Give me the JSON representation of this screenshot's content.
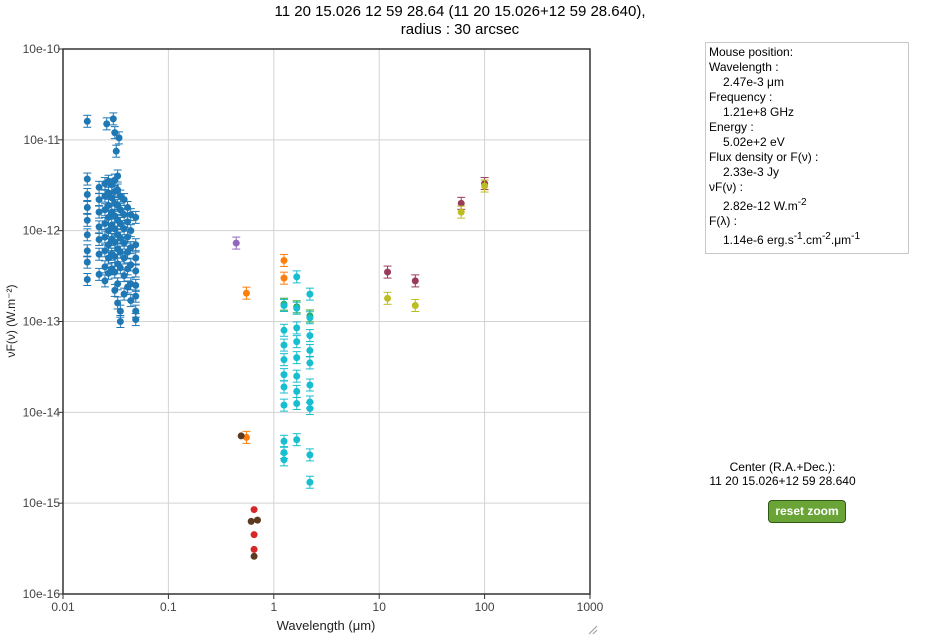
{
  "title": {
    "line1": "11 20 15.026 12 59 28.64 (11 20 15.026+12 59 28.640),",
    "line2": "radius : 30 arcsec"
  },
  "info": {
    "mouse_position_label": "Mouse position:",
    "wavelength_label": "Wavelength :",
    "wavelength_value": "2.47e-3 μm",
    "frequency_label": "Frequency :",
    "frequency_value": "1.21e+8 GHz",
    "energy_label": "Energy :",
    "energy_value": "5.02e+2 eV",
    "flux_label": "Flux density or F(ν) :",
    "flux_value": "2.33e-3 Jy",
    "vf_label": "νF(ν) :",
    "vf_value": "2.82e-12 W.m",
    "vf_unit_exp": "-2",
    "fl_label": "F(λ) :",
    "fl_value_a": "1.14e-6 erg.s",
    "fl_exp1": "-1",
    "fl_value_b": ".cm",
    "fl_exp2": "-2",
    "fl_value_c": ".μm",
    "fl_exp3": "-1"
  },
  "center": {
    "title": "Center (R.A.+Dec.):",
    "value": "11 20 15.026+12 59 28.640"
  },
  "reset_zoom_label": "reset zoom",
  "chart_data": {
    "type": "scatter",
    "xlabel": "Wavelength (μm)",
    "ylabel": "νF(ν) (W.m⁻²)",
    "xscale": "log",
    "yscale": "log",
    "xlim": [
      0.01,
      1000
    ],
    "ylim": [
      1e-16,
      1e-10
    ],
    "x_tick_labels": [
      "0.01",
      "0.1",
      "1",
      "10",
      "100",
      "1000"
    ],
    "y_tick_labels": [
      "10e-16",
      "10e-15",
      "10e-14",
      "10e-13",
      "10e-12",
      "10e-11",
      "10e-10"
    ],
    "grid": true,
    "series": [
      {
        "color": "#1f77b4",
        "error_bars": true,
        "points": [
          [
            0.017,
            1.6e-11
          ],
          [
            0.026,
            1.5e-11
          ],
          [
            0.03,
            1.7e-11
          ],
          [
            0.031,
            1.2e-11
          ],
          [
            0.034,
            1.05e-11
          ],
          [
            0.032,
            7.5e-12
          ],
          [
            0.017,
            3.7e-12
          ],
          [
            0.017,
            2.5e-12
          ],
          [
            0.017,
            1.8e-12
          ],
          [
            0.017,
            1.3e-12
          ],
          [
            0.017,
            9e-13
          ],
          [
            0.017,
            6e-13
          ],
          [
            0.017,
            4.5e-13
          ],
          [
            0.017,
            2.9e-13
          ],
          [
            0.022,
            3e-12
          ],
          [
            0.022,
            2.2e-12
          ],
          [
            0.022,
            1.6e-12
          ],
          [
            0.022,
            1.1e-12
          ],
          [
            0.022,
            8e-13
          ],
          [
            0.022,
            5.5e-13
          ],
          [
            0.022,
            3.3e-13
          ],
          [
            0.025,
            3.3e-12
          ],
          [
            0.025,
            2.4e-12
          ],
          [
            0.025,
            1.7e-12
          ],
          [
            0.025,
            1.2e-12
          ],
          [
            0.025,
            8.5e-13
          ],
          [
            0.025,
            6e-13
          ],
          [
            0.025,
            4e-13
          ],
          [
            0.025,
            2.8e-13
          ],
          [
            0.027,
            3.5e-12
          ],
          [
            0.027,
            2.6e-12
          ],
          [
            0.027,
            1.9e-12
          ],
          [
            0.027,
            1.4e-12
          ],
          [
            0.027,
            1e-12
          ],
          [
            0.027,
            7e-13
          ],
          [
            0.027,
            5e-13
          ],
          [
            0.027,
            3.4e-13
          ],
          [
            0.029,
            3.2e-12
          ],
          [
            0.029,
            2.3e-12
          ],
          [
            0.029,
            1.6e-12
          ],
          [
            0.029,
            1.15e-12
          ],
          [
            0.029,
            8e-13
          ],
          [
            0.029,
            5.5e-13
          ],
          [
            0.029,
            3.8e-13
          ],
          [
            0.031,
            3.6e-12
          ],
          [
            0.031,
            2.7e-12
          ],
          [
            0.031,
            2e-12
          ],
          [
            0.031,
            1.45e-12
          ],
          [
            0.031,
            1.05e-12
          ],
          [
            0.031,
            7.5e-13
          ],
          [
            0.031,
            5.2e-13
          ],
          [
            0.031,
            3.5e-13
          ],
          [
            0.031,
            2.2e-13
          ],
          [
            0.033,
            4e-12
          ],
          [
            0.033,
            2.8e-12
          ],
          [
            0.033,
            1.9e-12
          ],
          [
            0.033,
            1.3e-12
          ],
          [
            0.033,
            9e-13
          ],
          [
            0.033,
            6.3e-13
          ],
          [
            0.033,
            4.3e-13
          ],
          [
            0.033,
            2.6e-13
          ],
          [
            0.033,
            1.6e-13
          ],
          [
            0.035,
            2.4e-12
          ],
          [
            0.035,
            1.7e-12
          ],
          [
            0.035,
            1.2e-12
          ],
          [
            0.035,
            8.3e-13
          ],
          [
            0.035,
            5.8e-13
          ],
          [
            0.035,
            3.9e-13
          ],
          [
            0.035,
            1.3e-13
          ],
          [
            0.035,
            1e-13
          ],
          [
            0.038,
            2.2e-12
          ],
          [
            0.038,
            1.5e-12
          ],
          [
            0.038,
            1.05e-12
          ],
          [
            0.038,
            7.3e-13
          ],
          [
            0.038,
            5e-13
          ],
          [
            0.038,
            3.2e-13
          ],
          [
            0.038,
            2e-13
          ],
          [
            0.041,
            1.8e-12
          ],
          [
            0.041,
            1.25e-12
          ],
          [
            0.041,
            8.5e-13
          ],
          [
            0.041,
            5.8e-13
          ],
          [
            0.041,
            3.8e-13
          ],
          [
            0.041,
            2.4e-13
          ],
          [
            0.044,
            1.5e-12
          ],
          [
            0.044,
            1e-12
          ],
          [
            0.044,
            6.5e-13
          ],
          [
            0.044,
            4.2e-13
          ],
          [
            0.044,
            2.6e-13
          ],
          [
            0.044,
            1.7e-13
          ],
          [
            0.049,
            1.4e-12
          ],
          [
            0.049,
            7e-13
          ],
          [
            0.049,
            5e-13
          ],
          [
            0.049,
            3.6e-13
          ],
          [
            0.049,
            2.5e-13
          ],
          [
            0.049,
            1.9e-13
          ],
          [
            0.049,
            1.3e-13
          ],
          [
            0.049,
            1.05e-13
          ]
        ]
      },
      {
        "color": "#9467bd",
        "error_bars": true,
        "points": [
          [
            0.44,
            7.3e-13
          ]
        ]
      },
      {
        "color": "#ff7f0e",
        "error_bars": true,
        "points": [
          [
            0.55,
            2.05e-13
          ],
          [
            1.25,
            4.7e-13
          ],
          [
            1.25,
            3e-13
          ],
          [
            0.55,
            5.3e-15
          ]
        ]
      },
      {
        "color": "#2ca02c",
        "error_bars": true,
        "points": [
          [
            1.25,
            1.55e-13
          ],
          [
            1.65,
            1.45e-13
          ],
          [
            2.2,
            1.15e-13
          ]
        ]
      },
      {
        "color": "#17becf",
        "error_bars": true,
        "points": [
          [
            1.65,
            3.1e-13
          ],
          [
            2.2,
            2e-13
          ],
          [
            1.25,
            1.5e-13
          ],
          [
            1.65,
            1.4e-13
          ],
          [
            2.2,
            1.1e-13
          ],
          [
            1.25,
            8e-14
          ],
          [
            1.65,
            8.5e-14
          ],
          [
            2.2,
            7e-14
          ],
          [
            1.25,
            5.5e-14
          ],
          [
            1.65,
            6e-14
          ],
          [
            2.2,
            4.8e-14
          ],
          [
            1.25,
            3.8e-14
          ],
          [
            1.65,
            4e-14
          ],
          [
            2.2,
            3.5e-14
          ],
          [
            1.25,
            2.6e-14
          ],
          [
            1.65,
            2.5e-14
          ],
          [
            2.2,
            2e-14
          ],
          [
            1.25,
            1.9e-14
          ],
          [
            1.65,
            1.7e-14
          ],
          [
            2.2,
            1.3e-14
          ],
          [
            1.25,
            1.2e-14
          ],
          [
            1.65,
            1.25e-14
          ],
          [
            2.2,
            1.1e-14
          ],
          [
            1.25,
            4.8e-15
          ],
          [
            1.65,
            5e-15
          ],
          [
            1.25,
            3.6e-15
          ],
          [
            2.2,
            3.4e-15
          ],
          [
            1.25,
            3e-15
          ],
          [
            2.2,
            1.7e-15
          ]
        ]
      },
      {
        "color": "#5c3a21",
        "error_bars": false,
        "points": [
          [
            0.49,
            5.5e-15
          ],
          [
            0.61,
            6.3e-16
          ],
          [
            0.7,
            6.5e-16
          ],
          [
            0.65,
            2.6e-16
          ]
        ]
      },
      {
        "color": "#d62728",
        "error_bars": false,
        "points": [
          [
            0.65,
            8.5e-16
          ],
          [
            0.65,
            4.5e-16
          ],
          [
            0.65,
            3.1e-16
          ]
        ]
      },
      {
        "color": "#9b3b5a",
        "error_bars": true,
        "points": [
          [
            12,
            3.5e-13
          ],
          [
            22,
            2.8e-13
          ],
          [
            60,
            2e-12
          ],
          [
            100,
            3.3e-12
          ]
        ]
      },
      {
        "color": "#bcbd22",
        "error_bars": true,
        "points": [
          [
            12,
            1.8e-13
          ],
          [
            22,
            1.5e-13
          ],
          [
            60,
            1.6e-12
          ],
          [
            100,
            3.1e-12
          ]
        ]
      }
    ]
  }
}
